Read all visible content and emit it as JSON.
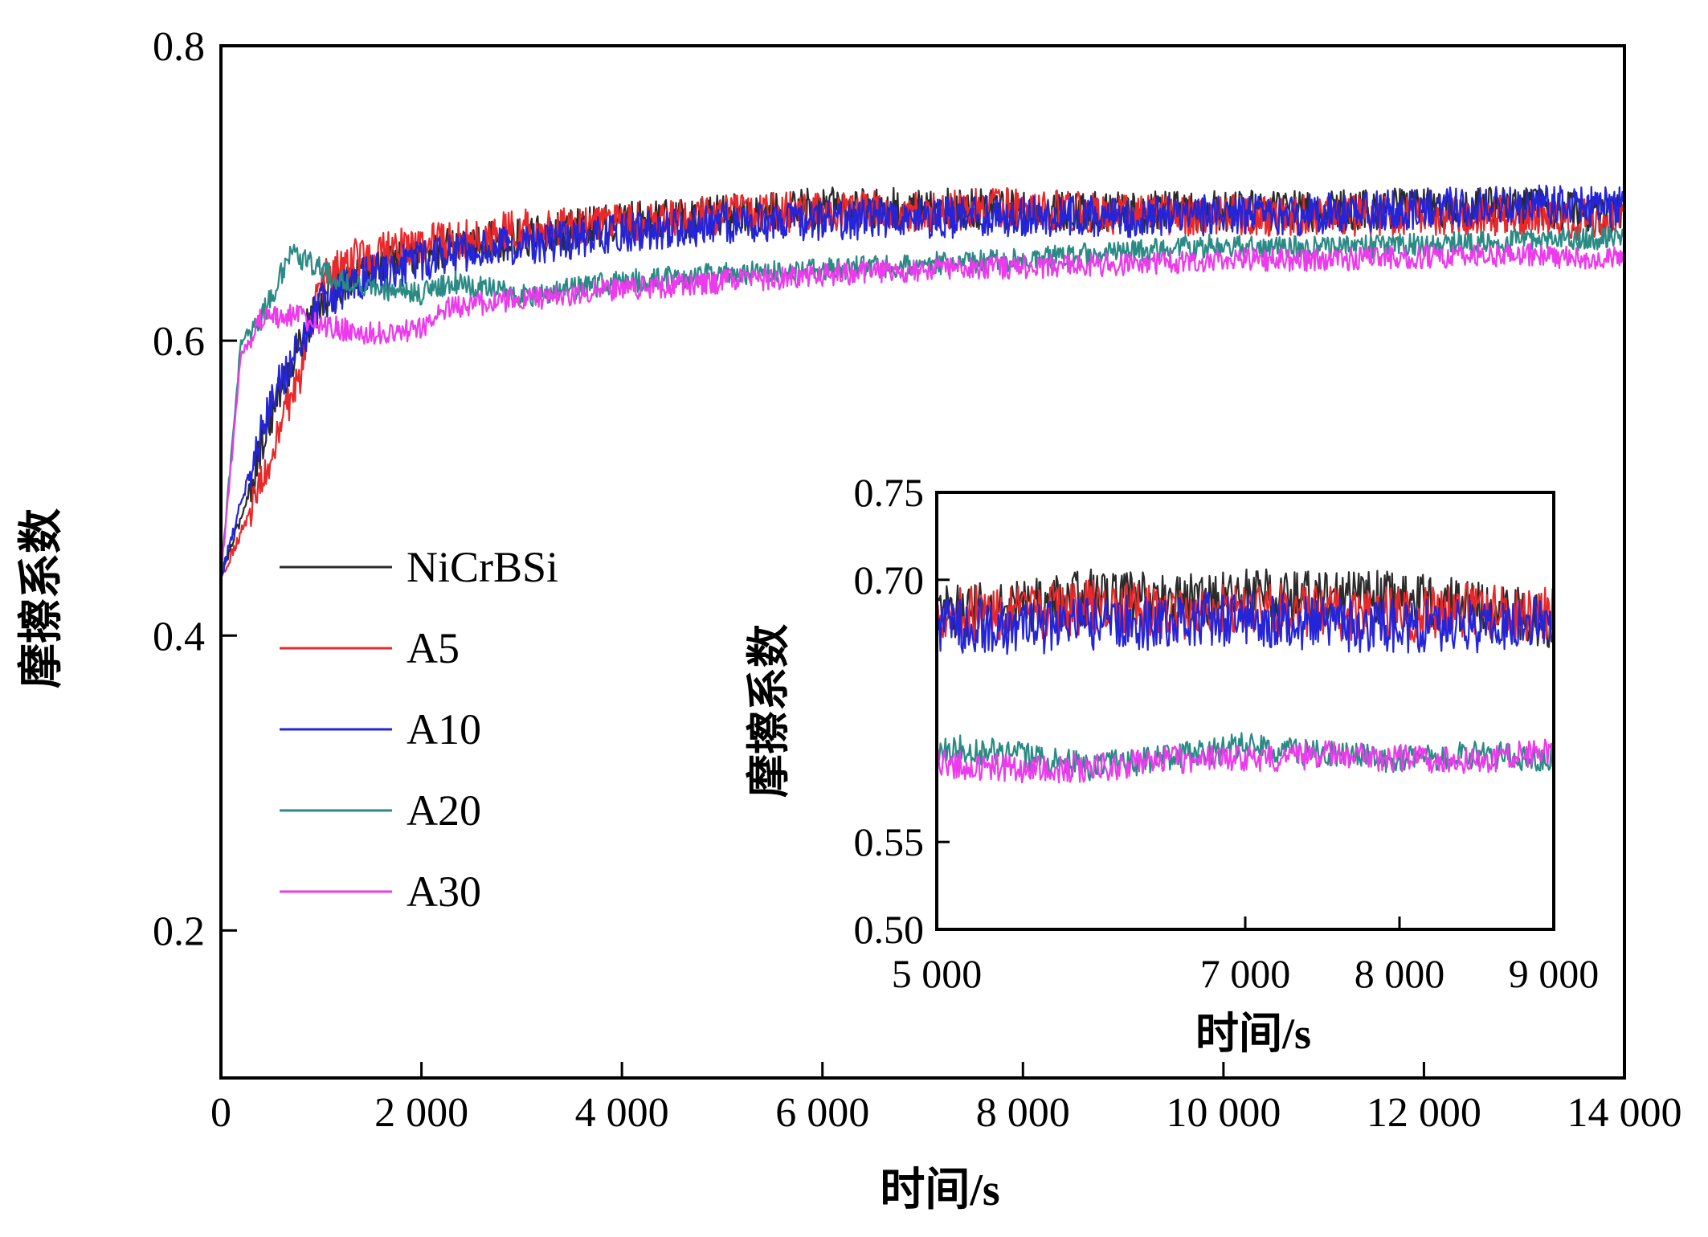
{
  "chart_data": [
    {
      "type": "line",
      "xlabel": "时间/s",
      "ylabel": "摩擦系数",
      "xlim": [
        0,
        14000
      ],
      "ylim": [
        0.1,
        0.8
      ],
      "xticks": [
        0,
        2000,
        4000,
        6000,
        8000,
        10000,
        12000,
        14000
      ],
      "xtick_labels": [
        "0",
        "2 000",
        "4 000",
        "6 000",
        "8 000",
        "10 000",
        "12 000",
        "14 000"
      ],
      "yticks": [
        0.2,
        0.4,
        0.6,
        0.8
      ],
      "ytick_labels": [
        "0.2",
        "0.4",
        "0.6",
        "0.8"
      ],
      "grid": false,
      "legend_position": "left-middle",
      "series": [
        {
          "name": "NiCrBSi",
          "color": "#2b2b2b",
          "x": [
            0,
            200,
            500,
            800,
            1000,
            1300,
            2000,
            3000,
            4000,
            5000,
            6000,
            7000,
            8000,
            9000,
            10000,
            11000,
            12000,
            13000,
            14000
          ],
          "y": [
            0.44,
            0.48,
            0.55,
            0.6,
            0.625,
            0.645,
            0.66,
            0.67,
            0.68,
            0.685,
            0.69,
            0.69,
            0.688,
            0.687,
            0.688,
            0.688,
            0.69,
            0.69,
            0.685
          ]
        },
        {
          "name": "A5",
          "color": "#e8282a",
          "x": [
            0,
            200,
            500,
            800,
            1000,
            1300,
            2000,
            3000,
            4000,
            5000,
            6000,
            7000,
            8000,
            9000,
            10000,
            11000,
            12000,
            13000,
            14000
          ],
          "y": [
            0.44,
            0.47,
            0.52,
            0.58,
            0.64,
            0.655,
            0.665,
            0.675,
            0.68,
            0.685,
            0.688,
            0.688,
            0.69,
            0.685,
            0.685,
            0.685,
            0.685,
            0.685,
            0.68
          ]
        },
        {
          "name": "A10",
          "color": "#2424d8",
          "x": [
            0,
            200,
            500,
            800,
            1000,
            1300,
            2000,
            3000,
            4000,
            5000,
            6000,
            7000,
            8000,
            9000,
            10000,
            11000,
            12000,
            13000,
            14000
          ],
          "y": [
            0.44,
            0.49,
            0.56,
            0.6,
            0.625,
            0.64,
            0.655,
            0.665,
            0.672,
            0.68,
            0.682,
            0.683,
            0.685,
            0.684,
            0.685,
            0.686,
            0.69,
            0.692,
            0.69
          ]
        },
        {
          "name": "A20",
          "color": "#2a8a84",
          "x": [
            0,
            200,
            400,
            700,
            900,
            1200,
            1600,
            2000,
            2300,
            3000,
            4000,
            5000,
            6000,
            7000,
            8000,
            9000,
            10000,
            11000,
            12000,
            13000,
            14000
          ],
          "y": [
            0.44,
            0.6,
            0.615,
            0.66,
            0.652,
            0.64,
            0.635,
            0.632,
            0.64,
            0.63,
            0.64,
            0.645,
            0.648,
            0.652,
            0.655,
            0.66,
            0.665,
            0.663,
            0.665,
            0.668,
            0.67
          ]
        },
        {
          "name": "A30",
          "color": "#ec3aec",
          "x": [
            0,
            200,
            400,
            700,
            1000,
            1500,
            2000,
            2200,
            3000,
            4000,
            5000,
            6000,
            7000,
            8000,
            9000,
            10000,
            11000,
            12000,
            13000,
            14000
          ],
          "y": [
            0.44,
            0.59,
            0.615,
            0.618,
            0.61,
            0.605,
            0.608,
            0.622,
            0.628,
            0.635,
            0.64,
            0.645,
            0.648,
            0.65,
            0.652,
            0.655,
            0.655,
            0.657,
            0.658,
            0.655
          ]
        }
      ]
    },
    {
      "type": "line",
      "xlabel": "时间/s",
      "ylabel": "摩擦系数",
      "xlim": [
        5000,
        9000
      ],
      "ylim": [
        0.5,
        0.75
      ],
      "xticks": [
        5000,
        7000,
        8000,
        9000
      ],
      "xtick_labels": [
        "5 000",
        "7 000",
        "8 000",
        "9 000"
      ],
      "yticks": [
        0.5,
        0.55,
        0.7,
        0.75
      ],
      "ytick_labels": [
        "0.50",
        "0.55",
        "0.70",
        "0.75"
      ],
      "grid": false,
      "legend_position": "none",
      "series": [
        {
          "name": "NiCrBSi",
          "color": "#2b2b2b",
          "x": [
            5000,
            5500,
            6000,
            6500,
            7000,
            7500,
            8000,
            8500,
            9000
          ],
          "y": [
            0.68,
            0.685,
            0.69,
            0.688,
            0.692,
            0.69,
            0.69,
            0.685,
            0.676
          ]
        },
        {
          "name": "A5",
          "color": "#e8282a",
          "x": [
            5000,
            5500,
            6000,
            6500,
            7000,
            7500,
            8000,
            8500,
            9000
          ],
          "y": [
            0.682,
            0.68,
            0.685,
            0.68,
            0.685,
            0.68,
            0.68,
            0.682,
            0.68
          ]
        },
        {
          "name": "A10",
          "color": "#2424d8",
          "x": [
            5000,
            5500,
            6000,
            6500,
            7000,
            7500,
            8000,
            8500,
            9000
          ],
          "y": [
            0.675,
            0.672,
            0.675,
            0.676,
            0.678,
            0.675,
            0.673,
            0.674,
            0.678
          ]
        },
        {
          "name": "A20",
          "color": "#2a8a84",
          "x": [
            5000,
            5500,
            6000,
            6500,
            7000,
            7500,
            8000,
            8500,
            9000
          ],
          "y": [
            0.605,
            0.6,
            0.593,
            0.598,
            0.605,
            0.6,
            0.597,
            0.6,
            0.598
          ]
        },
        {
          "name": "A30",
          "color": "#ec3aec",
          "x": [
            5000,
            5500,
            6000,
            6500,
            7000,
            7500,
            8000,
            8500,
            9000
          ],
          "y": [
            0.595,
            0.592,
            0.592,
            0.597,
            0.597,
            0.6,
            0.598,
            0.597,
            0.602
          ]
        }
      ]
    }
  ]
}
